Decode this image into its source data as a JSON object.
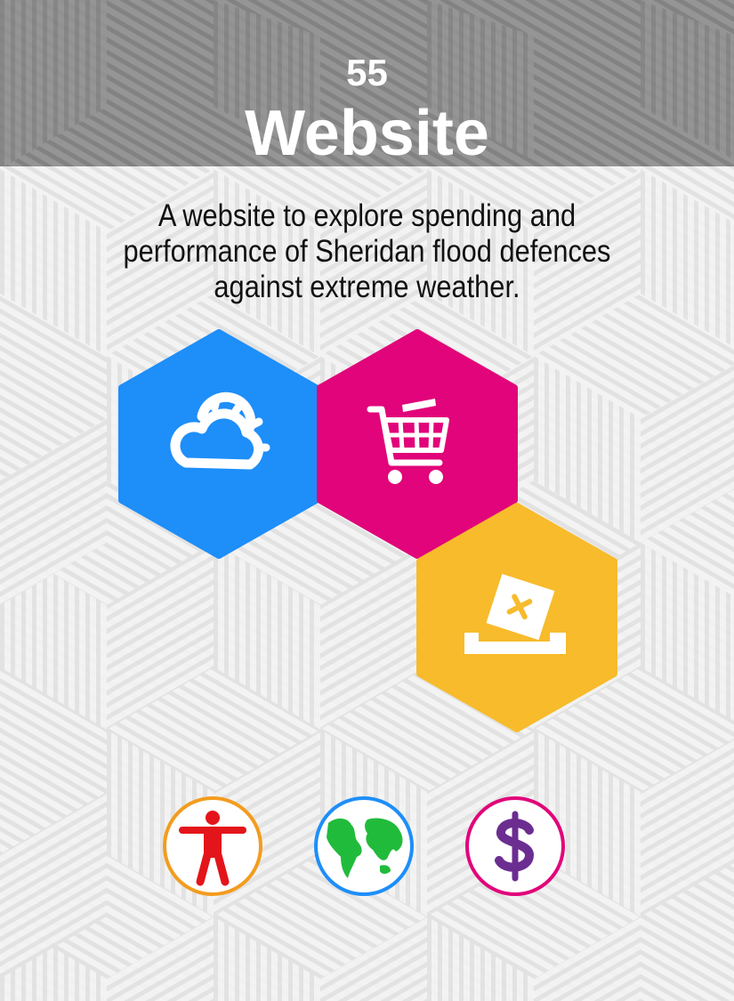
{
  "card": {
    "number": "55",
    "title": "Website",
    "description": "A website to explore spending and performance of Sheridan flood defences against extreme weather."
  },
  "hexagons": [
    {
      "name": "weather",
      "icon": "sun-cloud-icon",
      "color": "#1e8ef9"
    },
    {
      "name": "shopping",
      "icon": "shopping-cart-icon",
      "color": "#e1047a"
    },
    {
      "name": "voting",
      "icon": "ballot-box-icon",
      "color": "#f7bb2b"
    }
  ],
  "badges": [
    {
      "name": "people",
      "icon": "person-icon",
      "border": "#f39c1e",
      "icon_color": "#e4141b"
    },
    {
      "name": "planet",
      "icon": "globe-icon",
      "border": "#1e8ef9",
      "icon_color": "#21bb3b"
    },
    {
      "name": "money",
      "icon": "dollar-icon",
      "border": "#e1047a",
      "icon_color": "#6c2d91"
    }
  ],
  "colors": {
    "header": "#8f8f8f",
    "background": "#f1f1f1"
  }
}
